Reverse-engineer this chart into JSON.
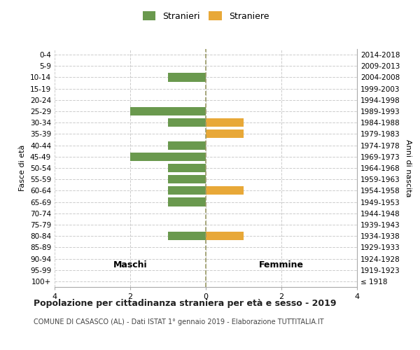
{
  "age_groups": [
    "100+",
    "95-99",
    "90-94",
    "85-89",
    "80-84",
    "75-79",
    "70-74",
    "65-69",
    "60-64",
    "55-59",
    "50-54",
    "45-49",
    "40-44",
    "35-39",
    "30-34",
    "25-29",
    "20-24",
    "15-19",
    "10-14",
    "5-9",
    "0-4"
  ],
  "birth_years": [
    "≤ 1918",
    "1919-1923",
    "1924-1928",
    "1929-1933",
    "1934-1938",
    "1939-1943",
    "1944-1948",
    "1949-1953",
    "1954-1958",
    "1959-1963",
    "1964-1968",
    "1969-1973",
    "1974-1978",
    "1979-1983",
    "1984-1988",
    "1989-1993",
    "1994-1998",
    "1999-2003",
    "2004-2008",
    "2009-2013",
    "2014-2018"
  ],
  "stranieri": [
    0,
    0,
    0,
    0,
    1,
    0,
    0,
    1,
    1,
    1,
    1,
    2,
    1,
    0,
    1,
    2,
    0,
    0,
    1,
    0,
    0
  ],
  "straniere": [
    0,
    0,
    0,
    0,
    1,
    0,
    0,
    0,
    1,
    0,
    0,
    0,
    0,
    1,
    1,
    0,
    0,
    0,
    0,
    0,
    0
  ],
  "color_stranieri": "#6a994e",
  "color_straniere": "#e8a838",
  "xlim": 4,
  "title": "Popolazione per cittadinanza straniera per età e sesso - 2019",
  "subtitle": "COMUNE DI CASASCO (AL) - Dati ISTAT 1° gennaio 2019 - Elaborazione TUTTITALIA.IT",
  "ylabel_left": "Fasce di età",
  "ylabel_right": "Anni di nascita",
  "label_maschi": "Maschi",
  "label_femmine": "Femmine",
  "legend_stranieri": "Stranieri",
  "legend_straniere": "Straniere",
  "bar_height": 0.75,
  "grid_color": "#cccccc",
  "center_line_color": "#999966",
  "bg_color": "#ffffff"
}
